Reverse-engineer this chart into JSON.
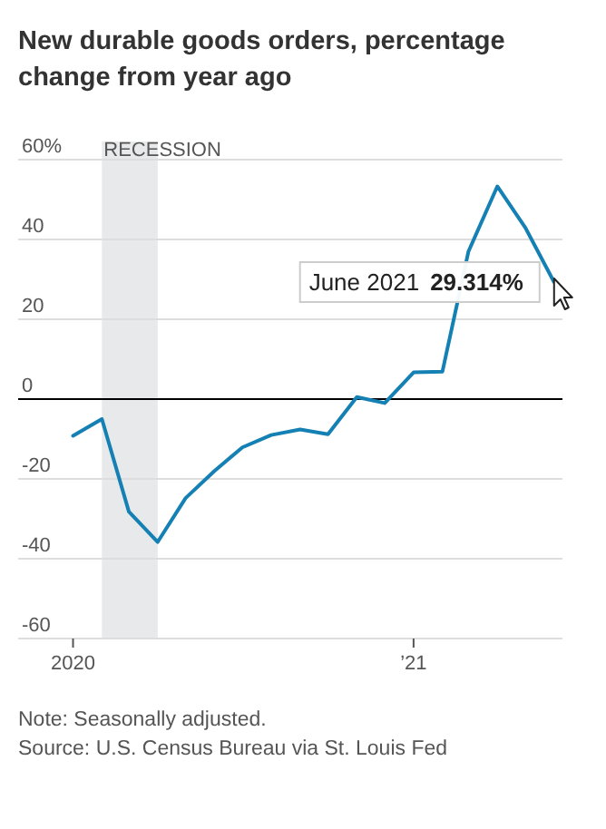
{
  "chart_data": {
    "type": "line",
    "title": "New durable goods orders, percentage change from year ago",
    "x": [
      "2020-01",
      "2020-02",
      "2020-03",
      "2020-04",
      "2020-05",
      "2020-06",
      "2020-07",
      "2020-08",
      "2020-09",
      "2020-10",
      "2020-11",
      "2020-12",
      "2021-01",
      "2021-02",
      "2021-03",
      "2021-04",
      "2021-05",
      "2021-06"
    ],
    "series": [
      {
        "color": "#1580b4",
        "values": [
          -9.2,
          -5,
          -28.2,
          -35.8,
          -24.8,
          -18,
          -12.1,
          -9,
          -7.6,
          -8.8,
          0.5,
          -1,
          6.7,
          6.9,
          37,
          53.3,
          43,
          29.314
        ]
      }
    ],
    "xlim": [
      "2019-11-03",
      "2021-06-10"
    ],
    "xticks": [
      {
        "value": "2020-01",
        "label": "2020"
      },
      {
        "value": "2021-01",
        "label": "’21"
      }
    ],
    "ylim": [
      -60,
      60
    ],
    "yticks": [
      {
        "value": 60,
        "label": "60%"
      },
      40,
      20,
      0,
      -20,
      -40,
      -60
    ],
    "grid": "y",
    "marker": "none",
    "line_style": "solid",
    "ref_lines": [
      {
        "axis": "y",
        "value": 0,
        "color": "#000000"
      }
    ],
    "bands": [
      {
        "axis": "x",
        "from": "2020-02",
        "to": "2020-04",
        "label": "RECESSION",
        "color": "#e8e9ea"
      }
    ],
    "annotations": [
      {
        "text": "June 2021 29.314%",
        "x": "2021-06",
        "y": 29.314
      },
      "Note: Seasonally adjusted.",
      "Source: U.S. Census Bureau via St. Louis Fed"
    ]
  }
}
